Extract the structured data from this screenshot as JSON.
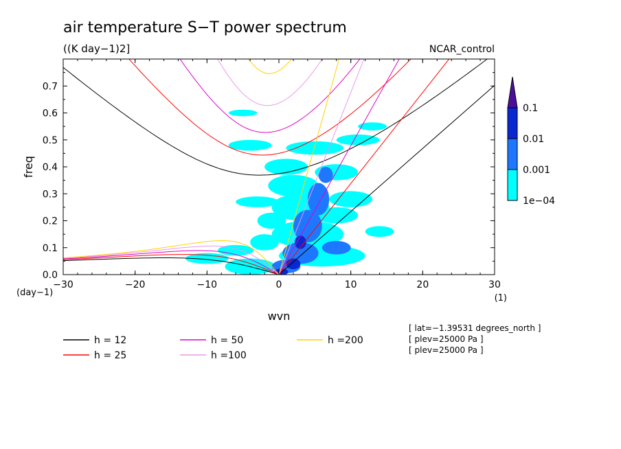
{
  "chart_data": {
    "type": "heatmap",
    "title": "air temperature S−T power spectrum",
    "units": "((K day−1)2]",
    "model": "NCAR_control",
    "xlabel": "wvn",
    "ylabel": "freq",
    "x_unit_label": "(1)",
    "y_unit_label": "(day−1)",
    "xlim": [
      -30,
      30
    ],
    "ylim": [
      0,
      0.8
    ],
    "x_ticks": [
      "−30",
      "−20",
      "−10",
      "0",
      "10",
      "20",
      "30"
    ],
    "x_tick_values": [
      -30,
      -20,
      -10,
      0,
      10,
      20,
      30
    ],
    "y_ticks": [
      "0.0",
      "0.1",
      "0.2",
      "0.3",
      "0.4",
      "0.5",
      "0.6",
      "0.7"
    ],
    "y_tick_values": [
      0,
      0.1,
      0.2,
      0.3,
      0.4,
      0.5,
      0.6,
      0.7
    ],
    "colorbar": {
      "levels": [
        "1e−04",
        "0.001",
        "0.01",
        "0.1"
      ],
      "colors": [
        "#00ffff",
        "#1e78ff",
        "#0a28d2",
        "#4b0f9b"
      ]
    },
    "dispersion_curves": [
      {
        "label": "h = 12",
        "h": 12,
        "color": "#000000"
      },
      {
        "label": "h = 25",
        "h": 25,
        "color": "#ff0000"
      },
      {
        "label": "h = 50",
        "h": 50,
        "color": "#e000c8"
      },
      {
        "label": "h =100",
        "h": 100,
        "color": "#e69be6"
      },
      {
        "label": "h =200",
        "h": 200,
        "color": "#ffd200"
      }
    ],
    "spectrum_regions": [
      {
        "level": 1,
        "cx": -10,
        "cy": 0.06,
        "rx": 3,
        "ry": 0.02
      },
      {
        "level": 1,
        "cx": -6,
        "cy": 0.09,
        "rx": 2.5,
        "ry": 0.02
      },
      {
        "level": 1,
        "cx": -4,
        "cy": 0.03,
        "rx": 3.5,
        "ry": 0.03
      },
      {
        "level": 1,
        "cx": -2,
        "cy": 0.12,
        "rx": 2,
        "ry": 0.03
      },
      {
        "level": 1,
        "cx": -1,
        "cy": 0.2,
        "rx": 2,
        "ry": 0.03
      },
      {
        "level": 1,
        "cx": -3,
        "cy": 0.27,
        "rx": 3,
        "ry": 0.02
      },
      {
        "level": 1,
        "cx": -4,
        "cy": 0.48,
        "rx": 3,
        "ry": 0.02
      },
      {
        "level": 1,
        "cx": -5,
        "cy": 0.6,
        "rx": 2,
        "ry": 0.012
      },
      {
        "level": 1,
        "cx": 1,
        "cy": 0.4,
        "rx": 3,
        "ry": 0.03
      },
      {
        "level": 1,
        "cx": 2,
        "cy": 0.33,
        "rx": 3.5,
        "ry": 0.04
      },
      {
        "level": 1,
        "cx": 3,
        "cy": 0.25,
        "rx": 4,
        "ry": 0.05
      },
      {
        "level": 1,
        "cx": 4,
        "cy": 0.15,
        "rx": 5,
        "ry": 0.05
      },
      {
        "level": 1,
        "cx": 6,
        "cy": 0.07,
        "rx": 6,
        "ry": 0.04
      },
      {
        "level": 1,
        "cx": 5,
        "cy": 0.47,
        "rx": 4,
        "ry": 0.025
      },
      {
        "level": 1,
        "cx": 8,
        "cy": 0.38,
        "rx": 3,
        "ry": 0.03
      },
      {
        "level": 1,
        "cx": 10,
        "cy": 0.28,
        "rx": 3,
        "ry": 0.03
      },
      {
        "level": 1,
        "cx": 11,
        "cy": 0.5,
        "rx": 3,
        "ry": 0.02
      },
      {
        "level": 1,
        "cx": 13,
        "cy": 0.55,
        "rx": 2,
        "ry": 0.015
      },
      {
        "level": 1,
        "cx": 14,
        "cy": 0.16,
        "rx": 2,
        "ry": 0.02
      },
      {
        "level": 1,
        "cx": 8,
        "cy": 0.22,
        "rx": 3,
        "ry": 0.03
      },
      {
        "level": 2,
        "cx": 1,
        "cy": 0.03,
        "rx": 2,
        "ry": 0.025
      },
      {
        "level": 2,
        "cx": 3,
        "cy": 0.08,
        "rx": 2.5,
        "ry": 0.04
      },
      {
        "level": 2,
        "cx": 4,
        "cy": 0.18,
        "rx": 2,
        "ry": 0.06
      },
      {
        "level": 2,
        "cx": 5.5,
        "cy": 0.28,
        "rx": 1.5,
        "ry": 0.06
      },
      {
        "level": 2,
        "cx": 6.5,
        "cy": 0.37,
        "rx": 1,
        "ry": 0.03
      },
      {
        "level": 2,
        "cx": 8,
        "cy": 0.1,
        "rx": 2,
        "ry": 0.025
      },
      {
        "level": 3,
        "cx": 0.3,
        "cy": 0.01,
        "rx": 1,
        "ry": 0.012
      },
      {
        "level": 3,
        "cx": 2,
        "cy": 0.04,
        "rx": 1,
        "ry": 0.02
      },
      {
        "level": 3,
        "cx": 3,
        "cy": 0.12,
        "rx": 0.8,
        "ry": 0.025
      }
    ],
    "info_lines": [
      "[ lat=−1.39531 degrees_north ]",
      "[ plev=25000 Pa ]",
      "[ plev=25000 Pa ]"
    ]
  }
}
